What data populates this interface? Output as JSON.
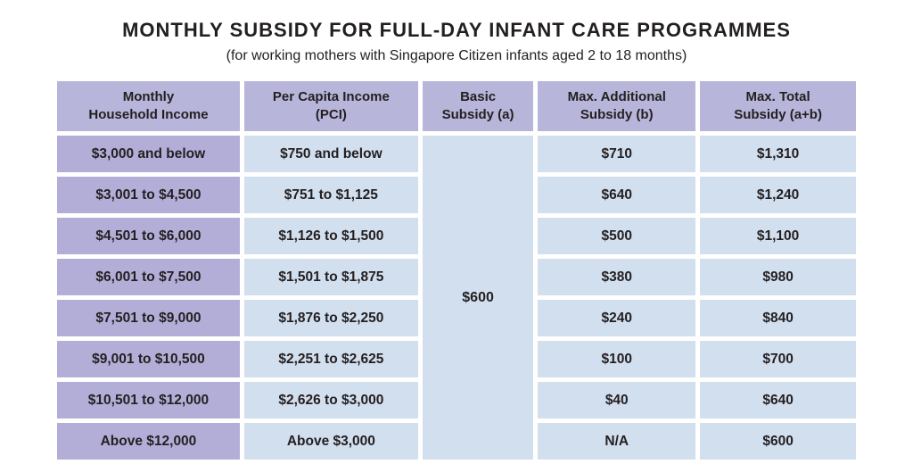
{
  "colors": {
    "header_bg": "#b7b5da",
    "income_col_bg": "#b3aed7",
    "cell_bg": "#d2dfef",
    "text": "#231f20",
    "page_bg": "#ffffff"
  },
  "chart_data": {
    "type": "table",
    "title": "MONTHLY SUBSIDY FOR FULL-DAY INFANT CARE PROGRAMMES",
    "subtitle": "(for working mothers with Singapore Citizen infants aged 2 to 18 months)",
    "columns": [
      [
        "Monthly",
        "Household Income"
      ],
      [
        "Per Capita Income",
        "(PCI)"
      ],
      [
        "Basic",
        "Subsidy (a)"
      ],
      [
        "Max. Additional",
        "Subsidy (b)"
      ],
      [
        "Max. Total",
        "Subsidy (a+b)"
      ]
    ],
    "merged_cell": {
      "column": "Basic Subsidy (a)",
      "value": "$600",
      "rowspan": 8
    },
    "rows": [
      [
        "$3,000 and below",
        "$750 and below",
        "$710",
        "$1,310"
      ],
      [
        "$3,001 to $4,500",
        "$751 to $1,125",
        "$640",
        "$1,240"
      ],
      [
        "$4,501 to $6,000",
        "$1,126 to $1,500",
        "$500",
        "$1,100"
      ],
      [
        "$6,001 to $7,500",
        "$1,501 to $1,875",
        "$380",
        "$980"
      ],
      [
        "$7,501 to $9,000",
        "$1,876 to $2,250",
        "$240",
        "$840"
      ],
      [
        "$9,001 to $10,500",
        "$2,251 to $2,625",
        "$100",
        "$700"
      ],
      [
        "$10,501 to $12,000",
        "$2,626 to $3,000",
        "$40",
        "$640"
      ],
      [
        "Above $12,000",
        "Above $3,000",
        "N/A",
        "$600"
      ]
    ]
  }
}
